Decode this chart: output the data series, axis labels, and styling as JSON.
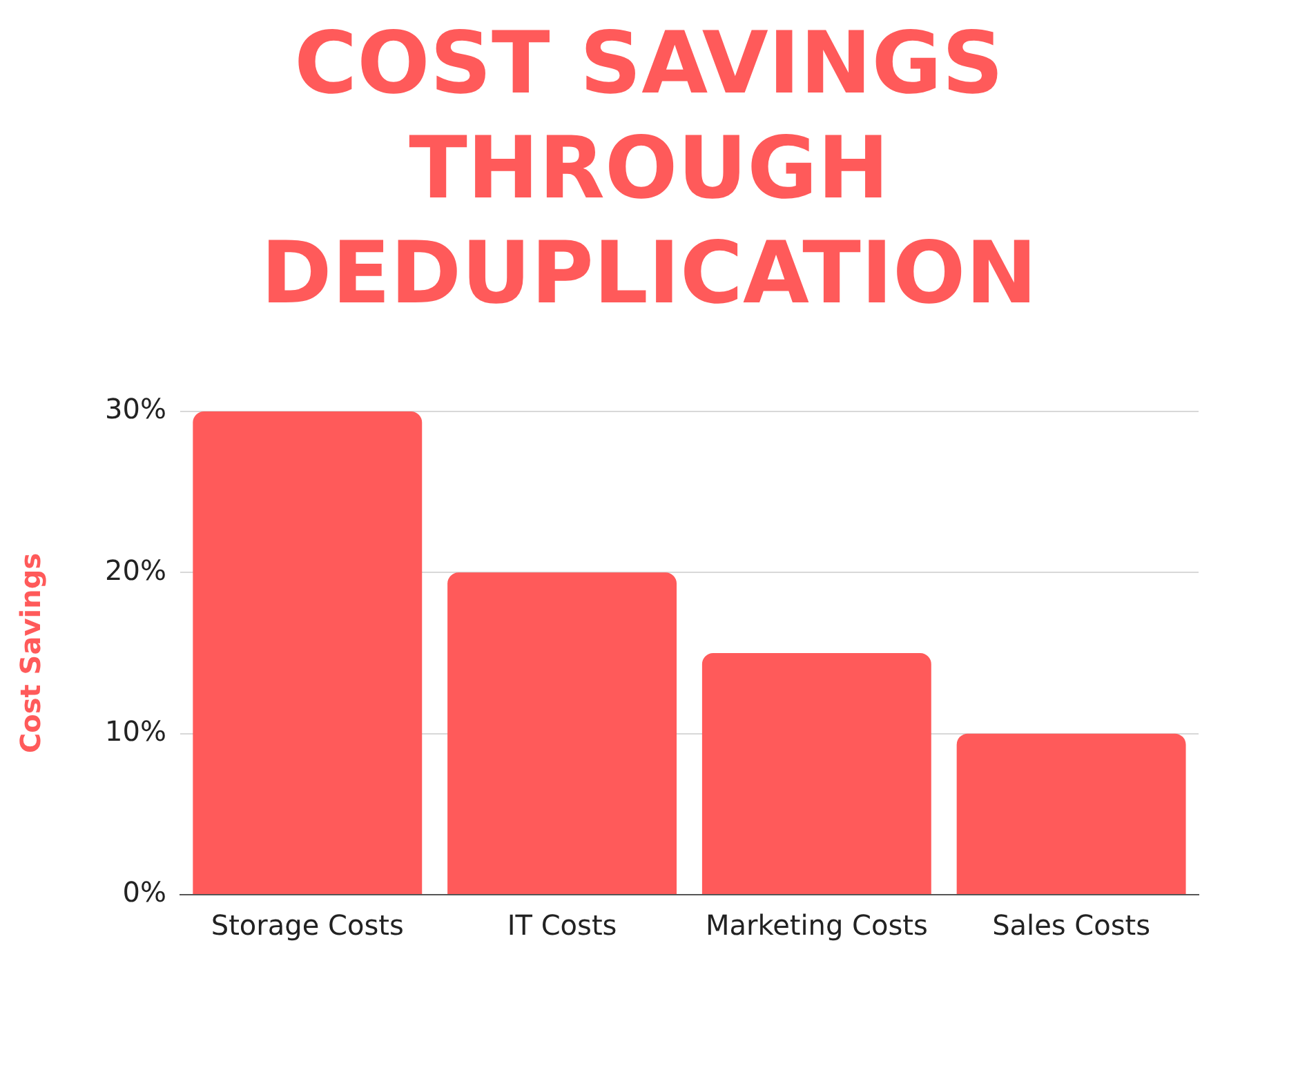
{
  "chart_data": {
    "type": "bar",
    "title": "COST SAVINGS THROUGH DEDUPLICATION",
    "ylabel": "Cost Savings",
    "categories": [
      "Storage Costs",
      "IT Costs",
      "Marketing Costs",
      "Sales Costs"
    ],
    "values": [
      30,
      20,
      15,
      10
    ],
    "color": "#ff5a5a",
    "ylim": [
      0,
      30
    ],
    "yticks": [
      {
        "value": 0,
        "label": "0%"
      },
      {
        "value": 10,
        "label": "10%"
      },
      {
        "value": 20,
        "label": "20%"
      },
      {
        "value": 30,
        "label": "30%"
      }
    ],
    "grid": "y",
    "legend": false
  }
}
